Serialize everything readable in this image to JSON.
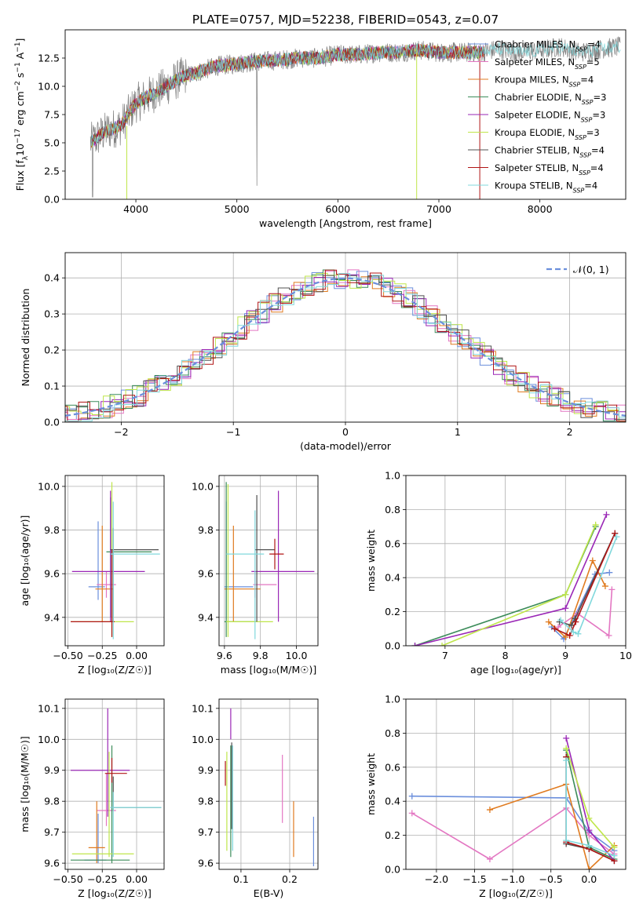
{
  "figure": {
    "title": "PLATE=0757, MJD=52238, FIBERID=0543, z=0.07"
  },
  "models": [
    {
      "label": "Chabrier MILES, N",
      "sub": "SSP",
      "tail": "=4",
      "color": "#6b8fdc"
    },
    {
      "label": "Salpeter MILES, N",
      "sub": "SSP",
      "tail": "=5",
      "color": "#e377c2"
    },
    {
      "label": "Kroupa MILES, N",
      "sub": "SSP",
      "tail": "=4",
      "color": "#e07b20"
    },
    {
      "label": "Chabrier ELODIE, N",
      "sub": "SSP",
      "tail": "=3",
      "color": "#3c8c5a"
    },
    {
      "label": "Salpeter ELODIE, N",
      "sub": "SSP",
      "tail": "=3",
      "color": "#9a27b6"
    },
    {
      "label": "Kroupa ELODIE, N",
      "sub": "SSP",
      "tail": "=3",
      "color": "#bfe64a"
    },
    {
      "label": "Chabrier STELIB, N",
      "sub": "SSP",
      "tail": "=4",
      "color": "#505050"
    },
    {
      "label": "Salpeter STELIB, N",
      "sub": "SSP",
      "tail": "=4",
      "color": "#b01515"
    },
    {
      "label": "Kroupa STELIB, N",
      "sub": "SSP",
      "tail": "=4",
      "color": "#80d8dc"
    }
  ],
  "chart_data": [
    {
      "id": "spectrum",
      "type": "line",
      "title": "PLATE=0757, MJD=52238, FIBERID=0543, z=0.07",
      "xlabel": "wavelength [Angstrom, rest frame]",
      "ylabel": "Flux [f",
      "ylabel_parts": [
        "Flux [f",
        "λ",
        "10",
        "−17",
        " erg cm",
        "−2",
        " s",
        "−1",
        " A",
        "−1",
        "]"
      ],
      "xlim": [
        3300,
        8850
      ],
      "ylim": [
        0,
        15
      ],
      "xticks": [
        4000,
        5000,
        6000,
        7000,
        8000
      ],
      "yticks": [
        0.0,
        2.5,
        5.0,
        7.5,
        10.0,
        12.5
      ],
      "ytick_labels": [
        "0.0",
        "2.5",
        "5.0",
        "7.5",
        "10.0",
        "12.5"
      ],
      "grid": false,
      "legend": "right",
      "data_x": [
        3550,
        3700,
        3850,
        4000,
        4100,
        4200,
        4300,
        4450,
        4600,
        4800,
        5000,
        5200,
        5400,
        5600,
        5800,
        6000,
        6200,
        6400,
        6600,
        6800,
        7000,
        7200,
        7400,
        7600,
        7800,
        8000,
        8200,
        8400,
        8600,
        8800
      ],
      "data_y": [
        5.0,
        6.0,
        6.5,
        8.5,
        9.0,
        9.5,
        10.0,
        10.8,
        11.2,
        11.8,
        12.0,
        12.2,
        12.3,
        12.5,
        12.5,
        12.8,
        12.8,
        13.0,
        13.0,
        13.2,
        13.0,
        13.0,
        13.0,
        13.3,
        13.0,
        13.2,
        13.5,
        13.0,
        13.3,
        13.5
      ],
      "model_end_x": [
        7450,
        7450,
        7450,
        7450,
        7450,
        7450,
        7450,
        7450,
        8800
      ]
    },
    {
      "id": "residuals",
      "type": "histogram",
      "xlabel": "(data-model)/error",
      "ylabel": "Normed distribution",
      "xlim": [
        -2.5,
        2.5
      ],
      "ylim": [
        0,
        0.47
      ],
      "xticks": [
        -2,
        -1,
        0,
        1,
        2
      ],
      "xtick_labels": [
        "−2",
        "−1",
        "0",
        "1",
        "2"
      ],
      "yticks": [
        0.0,
        0.1,
        0.2,
        0.3,
        0.4
      ],
      "ytick_labels": [
        "0.0",
        "0.1",
        "0.2",
        "0.3",
        "0.4"
      ],
      "grid": true,
      "legend": "top-right",
      "reference_label": "𝒩(0, 1)",
      "reference_color": "#6b8fdc",
      "bin_width": 0.1
    },
    {
      "id": "age-vs-z",
      "type": "errorbar",
      "xlabel": "Z [log₁₀(Z/Z☉)]",
      "ylabel": "age  [log₁₀(age/yr)]",
      "xlim": [
        -0.52,
        0.2
      ],
      "ylim": [
        9.27,
        10.05
      ],
      "xticks": [
        -0.5,
        -0.25,
        0.0
      ],
      "xtick_labels": [
        "−0.50",
        "−0.25",
        "0.00"
      ],
      "yticks": [
        9.4,
        9.6,
        9.8,
        10.0
      ],
      "ytick_labels": [
        "9.4",
        "9.6",
        "9.8",
        "10.0"
      ],
      "grid": true,
      "points": [
        {
          "x": -0.28,
          "y": 9.54,
          "xerr": [
            0.07,
            0.05
          ],
          "yerr": [
            0.06,
            0.3
          ]
        },
        {
          "x": -0.22,
          "y": 9.55,
          "xerr": [
            0.07,
            0.07
          ],
          "yerr": [
            0.06,
            0.06
          ]
        },
        {
          "x": -0.25,
          "y": 9.53,
          "xerr": [
            0.05,
            0.08
          ],
          "yerr": [
            0.15,
            0.29
          ]
        },
        {
          "x": -0.19,
          "y": 9.7,
          "xerr": [
            0.03,
            0.3
          ],
          "yerr": [
            0.3,
            0.25
          ]
        },
        {
          "x": -0.19,
          "y": 9.61,
          "xerr": [
            0.28,
            0.25
          ],
          "yerr": [
            0.23,
            0.37
          ]
        },
        {
          "x": -0.18,
          "y": 9.38,
          "xerr": [
            0.3,
            0.16
          ],
          "yerr": [
            0.07,
            0.64
          ]
        },
        {
          "x": -0.17,
          "y": 9.71,
          "xerr": [
            0.02,
            0.33
          ],
          "yerr": [
            0.33,
            0.1
          ]
        },
        {
          "x": -0.18,
          "y": 9.38,
          "xerr": [
            0.3,
            0.02
          ],
          "yerr": [
            0.07,
            0.33
          ]
        },
        {
          "x": -0.17,
          "y": 9.69,
          "xerr": [
            0.02,
            0.34
          ],
          "yerr": [
            0.39,
            0.24
          ]
        }
      ]
    },
    {
      "id": "age-vs-mass",
      "type": "errorbar",
      "xlabel": "mass [log₁₀(M/M☉)]",
      "ylabel": "",
      "xlim": [
        9.57,
        10.12
      ],
      "ylim": [
        9.27,
        10.05
      ],
      "xticks": [
        9.6,
        9.8,
        10.0
      ],
      "xtick_labels": [
        "9.6",
        "9.8",
        "10.0"
      ],
      "yticks": [
        9.4,
        9.6,
        9.8,
        10.0
      ],
      "ytick_labels": [
        "9.4",
        "9.6",
        "9.8",
        "10.0"
      ],
      "grid": true,
      "points": [
        {
          "x": 9.61,
          "y": 9.54,
          "xerr": [
            0.01,
            0.15
          ],
          "yerr": [
            0.15,
            0.39
          ]
        },
        {
          "x": 9.77,
          "y": 9.55,
          "xerr": [
            0.01,
            0.12
          ],
          "yerr": [
            0.06,
            0.06
          ]
        },
        {
          "x": 9.65,
          "y": 9.53,
          "xerr": [
            0.05,
            0.15
          ],
          "yerr": [
            0.15,
            0.29
          ]
        },
        {
          "x": 9.61,
          "y": 9.38,
          "xerr": [
            0.01,
            0.17
          ],
          "yerr": [
            0.07,
            0.64
          ]
        },
        {
          "x": 9.9,
          "y": 9.61,
          "xerr": [
            0.15,
            0.2
          ],
          "yerr": [
            0.23,
            0.37
          ]
        },
        {
          "x": 9.62,
          "y": 9.38,
          "xerr": [
            0.01,
            0.25
          ],
          "yerr": [
            0.07,
            0.63
          ]
        },
        {
          "x": 9.78,
          "y": 9.71,
          "xerr": [
            0.01,
            0.1
          ],
          "yerr": [
            0.33,
            0.25
          ]
        },
        {
          "x": 9.88,
          "y": 9.69,
          "xerr": [
            0.03,
            0.05
          ],
          "yerr": [
            0.07,
            0.07
          ]
        },
        {
          "x": 9.77,
          "y": 9.69,
          "xerr": [
            0.16,
            0.05
          ],
          "yerr": [
            0.39,
            0.2
          ]
        }
      ]
    },
    {
      "id": "weight-vs-age",
      "type": "line",
      "xlabel": "age  [log₁₀(age/yr)]",
      "ylabel": "mass weight",
      "xlim": [
        6.35,
        10.0
      ],
      "ylim": [
        0,
        1.0
      ],
      "xticks": [
        7,
        8,
        9,
        10
      ],
      "xtick_labels": [
        "7",
        "8",
        "9",
        "10"
      ],
      "yticks": [
        0.0,
        0.2,
        0.4,
        0.6,
        0.8,
        1.0
      ],
      "ytick_labels": [
        "0.0",
        "0.2",
        "0.4",
        "0.6",
        "0.8",
        "1.0"
      ],
      "grid": true,
      "series": [
        {
          "x": [
            8.77,
            8.97,
            9.49,
            9.73
          ],
          "y": [
            0.11,
            0.04,
            0.42,
            0.43
          ]
        },
        {
          "x": [
            8.88,
            9.2,
            9.72,
            9.77
          ],
          "y": [
            0.11,
            0.19,
            0.06,
            0.33
          ]
        },
        {
          "x": [
            8.72,
            9.0,
            9.45,
            9.66
          ],
          "y": [
            0.14,
            0.05,
            0.5,
            0.35
          ]
        },
        {
          "x": [
            6.5,
            9.0,
            9.5
          ],
          "y": [
            0.0,
            0.3,
            0.7
          ]
        },
        {
          "x": [
            6.5,
            9.0,
            9.68
          ],
          "y": [
            0.0,
            0.22,
            0.77
          ]
        },
        {
          "x": [
            6.95,
            9.0,
            9.5
          ],
          "y": [
            0.0,
            0.3,
            0.71
          ]
        },
        {
          "x": [
            8.9,
            9.1,
            9.16,
            9.82
          ],
          "y": [
            0.14,
            0.12,
            0.16,
            0.66
          ]
        },
        {
          "x": [
            8.82,
            9.07,
            9.17,
            9.82
          ],
          "y": [
            0.1,
            0.06,
            0.14,
            0.66
          ]
        },
        {
          "x": [
            8.92,
            9.13,
            9.21,
            9.85
          ],
          "y": [
            0.15,
            0.08,
            0.07,
            0.64
          ]
        }
      ]
    },
    {
      "id": "mass-vs-z",
      "type": "errorbar",
      "xlabel": "Z [log₁₀(Z/Z☉)]",
      "ylabel": "mass [log₁₀(M/M☉)]",
      "xlim": [
        -0.52,
        0.2
      ],
      "ylim": [
        9.58,
        10.13
      ],
      "xticks": [
        -0.5,
        -0.25,
        0.0
      ],
      "xtick_labels": [
        "−0.50",
        "−0.25",
        "0.00"
      ],
      "yticks": [
        9.6,
        9.7,
        9.8,
        9.9,
        10.0,
        10.1
      ],
      "ytick_labels": [
        "9.6",
        "9.7",
        "9.8",
        "9.9",
        "10.0",
        "10.1"
      ],
      "grid": true,
      "points": [
        {
          "x": -0.28,
          "y": 9.61,
          "xerr": [
            0.1,
            0.06
          ],
          "yerr": [
            0.01,
            0.15
          ]
        },
        {
          "x": -0.22,
          "y": 9.77,
          "xerr": [
            0.07,
            0.07
          ],
          "yerr": [
            0.05,
            0.12
          ]
        },
        {
          "x": -0.29,
          "y": 9.65,
          "xerr": [
            0.06,
            0.06
          ],
          "yerr": [
            0.05,
            0.15
          ]
        },
        {
          "x": -0.18,
          "y": 9.61,
          "xerr": [
            0.3,
            0.13
          ],
          "yerr": [
            0.01,
            0.37
          ]
        },
        {
          "x": -0.21,
          "y": 9.9,
          "xerr": [
            0.27,
            0.16
          ],
          "yerr": [
            0.15,
            0.2
          ]
        },
        {
          "x": -0.2,
          "y": 9.63,
          "xerr": [
            0.27,
            0.18
          ],
          "yerr": [
            0.01,
            0.33
          ]
        },
        {
          "x": -0.17,
          "y": 9.78,
          "xerr": [
            0.02,
            0.35
          ],
          "yerr": [
            0.01,
            0.1
          ]
        },
        {
          "x": -0.18,
          "y": 9.89,
          "xerr": [
            0.05,
            0.11
          ],
          "yerr": [
            0.03,
            0.05
          ]
        },
        {
          "x": -0.17,
          "y": 9.78,
          "xerr": [
            0.02,
            0.35
          ],
          "yerr": [
            0.16,
            0.05
          ]
        }
      ]
    },
    {
      "id": "mass-vs-ebv",
      "type": "errorbar",
      "xlabel": "E(B-V)",
      "ylabel": "",
      "xlim": [
        0.055,
        0.258
      ],
      "ylim": [
        9.58,
        10.13
      ],
      "xticks": [
        0.1,
        0.2
      ],
      "xtick_labels": [
        "0.1",
        "0.2"
      ],
      "yticks": [
        9.6,
        9.7,
        9.8,
        9.9,
        10.0,
        10.1
      ],
      "ytick_labels": [
        "9.6",
        "9.7",
        "9.8",
        "9.9",
        "10.0",
        "10.1"
      ],
      "grid": true,
      "points": [
        {
          "x": 0.249,
          "y": 9.68,
          "xerr": [
            0,
            0
          ],
          "yerr": [
            0.09,
            0.07
          ]
        },
        {
          "x": 0.185,
          "y": 9.84,
          "xerr": [
            0,
            0
          ],
          "yerr": [
            0.11,
            0.11
          ]
        },
        {
          "x": 0.208,
          "y": 9.71,
          "xerr": [
            0,
            0
          ],
          "yerr": [
            0.09,
            0.09
          ]
        },
        {
          "x": 0.079,
          "y": 9.8,
          "xerr": [
            0,
            0
          ],
          "yerr": [
            0.18,
            0.18
          ]
        },
        {
          "x": 0.079,
          "y": 10.05,
          "xerr": [
            0,
            0
          ],
          "yerr": [
            0.05,
            0.05
          ]
        },
        {
          "x": 0.071,
          "y": 9.82,
          "xerr": [
            0,
            0
          ],
          "yerr": [
            0.18,
            0.14
          ]
        },
        {
          "x": 0.081,
          "y": 9.85,
          "xerr": [
            0,
            0
          ],
          "yerr": [
            0.14,
            0.14
          ]
        },
        {
          "x": 0.068,
          "y": 9.89,
          "xerr": [
            0,
            0
          ],
          "yerr": [
            0.04,
            0.04
          ]
        },
        {
          "x": 0.083,
          "y": 9.78,
          "xerr": [
            0,
            0
          ],
          "yerr": [
            0.14,
            0.2
          ]
        }
      ]
    },
    {
      "id": "weight-vs-z",
      "type": "line",
      "xlabel": "Z [log₁₀(Z/Z☉)]",
      "ylabel": "mass weight",
      "xlim": [
        -2.4,
        0.48
      ],
      "ylim": [
        0,
        1.0
      ],
      "xticks": [
        -2.0,
        -1.5,
        -1.0,
        -0.5,
        0.0
      ],
      "xtick_labels": [
        "−2.0",
        "−1.5",
        "−1.0",
        "−0.5",
        "0.0"
      ],
      "yticks": [
        0.0,
        0.2,
        0.4,
        0.6,
        0.8,
        1.0
      ],
      "ytick_labels": [
        "0.0",
        "0.2",
        "0.4",
        "0.6",
        "0.8",
        "1.0"
      ],
      "grid": true,
      "series": [
        {
          "x": [
            -2.32,
            -0.3,
            0.0,
            0.33
          ],
          "y": [
            0.43,
            0.42,
            0.22,
            0.11
          ]
        },
        {
          "x": [
            -2.32,
            -1.3,
            -0.3,
            0.0,
            0.33
          ],
          "y": [
            0.33,
            0.06,
            0.36,
            0.2,
            0.09
          ]
        },
        {
          "x": [
            -1.3,
            -0.3,
            0.0,
            0.33
          ],
          "y": [
            0.35,
            0.5,
            0.0,
            0.14
          ]
        },
        {
          "x": [
            -0.3,
            0.0,
            0.33
          ],
          "y": [
            0.7,
            0.13,
            0.06
          ]
        },
        {
          "x": [
            -0.3,
            0.0,
            0.33
          ],
          "y": [
            0.77,
            0.23,
            0.05
          ]
        },
        {
          "x": [
            -0.3,
            0.0,
            0.33
          ],
          "y": [
            0.71,
            0.3,
            0.13
          ]
        },
        {
          "x": [
            -0.3,
            -0.3,
            0.0,
            0.33
          ],
          "y": [
            0.66,
            0.15,
            0.12,
            0.05
          ]
        },
        {
          "x": [
            -0.3,
            -0.3,
            0.0,
            0.33
          ],
          "y": [
            0.66,
            0.16,
            0.12,
            0.05
          ]
        },
        {
          "x": [
            -0.3,
            -0.3,
            0.0,
            0.33
          ],
          "y": [
            0.64,
            0.17,
            0.14,
            0.08
          ]
        }
      ]
    }
  ]
}
